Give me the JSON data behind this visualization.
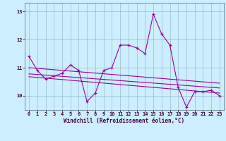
{
  "x": [
    0,
    1,
    2,
    3,
    4,
    5,
    6,
    7,
    8,
    9,
    10,
    11,
    12,
    13,
    14,
    15,
    16,
    17,
    18,
    19,
    20,
    21,
    22,
    23
  ],
  "y_main": [
    11.4,
    10.9,
    10.6,
    10.7,
    10.8,
    11.1,
    10.9,
    9.8,
    10.1,
    10.9,
    11.0,
    11.8,
    11.8,
    11.7,
    11.5,
    12.9,
    12.2,
    11.8,
    10.3,
    9.6,
    10.15,
    10.15,
    10.2,
    10.0
  ],
  "trend1_x": [
    0,
    23
  ],
  "trend1_y": [
    11.0,
    10.45
  ],
  "trend2_x": [
    0,
    23
  ],
  "trend2_y": [
    10.78,
    10.28
  ],
  "trend3_x": [
    0,
    23
  ],
  "trend3_y": [
    10.68,
    10.1
  ],
  "line_color": "#990099",
  "bg_color": "#cceeff",
  "grid_color": "#99bbcc",
  "xlabel": "Windchill (Refroidissement éolien,°C)",
  "ylim": [
    9.5,
    13.3
  ],
  "xlim": [
    -0.5,
    23.5
  ],
  "yticks": [
    10,
    11,
    12,
    13
  ],
  "xticks": [
    0,
    1,
    2,
    3,
    4,
    5,
    6,
    7,
    8,
    9,
    10,
    11,
    12,
    13,
    14,
    15,
    16,
    17,
    18,
    19,
    20,
    21,
    22,
    23
  ],
  "tick_fontsize": 5.0,
  "xlabel_fontsize": 5.5
}
